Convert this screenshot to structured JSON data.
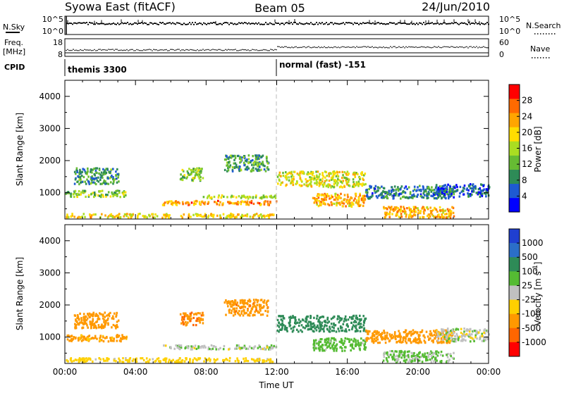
{
  "header": {
    "station": "Syowa East (fitACF)",
    "beam": "Beam 05",
    "date": "24/Jun/2010"
  },
  "strip_labels": {
    "noise_sky": "N.Sky",
    "noise_search": "N.Search",
    "freq_top": "Freq.",
    "freq_unit": "[MHz]",
    "nave": "Nave",
    "cpid": "CPID"
  },
  "noise_axis": {
    "left": [
      "10^5",
      "10^0"
    ],
    "right": [
      "10^5",
      "10^0"
    ]
  },
  "freq_axis": {
    "left": [
      "18",
      "8"
    ],
    "right": [
      "60",
      "0"
    ]
  },
  "cpid_segments": [
    {
      "start_hour": 0,
      "label": "themis 3300"
    },
    {
      "start_hour": 12,
      "label": "normal (fast) -151"
    }
  ],
  "colors": {
    "power": [
      "#0000ff",
      "#1e5ad2",
      "#2e8b57",
      "#66bb33",
      "#aadd22",
      "#ffdd00",
      "#ffa500",
      "#ff6a00",
      "#ff0000"
    ],
    "velocity": [
      "#1f3fd0",
      "#2b6ec8",
      "#2e8b57",
      "#55bb33",
      "#c0c0c0",
      "#ffd000",
      "#ff9900",
      "#ff6600",
      "#ff0000"
    ]
  },
  "chart_data": [
    {
      "type": "heatmap",
      "title": "",
      "xlabel": "Time UT",
      "ylabel": "Slant Range [km]",
      "xlim": [
        "00:00",
        "24:00"
      ],
      "ylim": [
        180,
        4500
      ],
      "x_ticks": [
        "00:00",
        "04:00",
        "08:00",
        "12:00",
        "16:00",
        "20:00",
        "00:00"
      ],
      "y_ticks": [
        1000,
        2000,
        3000,
        4000
      ],
      "colorbar": {
        "label": "Power [dB]",
        "min": 0,
        "max": 32,
        "ticks": [
          4,
          8,
          12,
          16,
          20,
          24,
          28
        ]
      },
      "echo_regions": [
        {
          "t": [
            0,
            11.8
          ],
          "range": [
            250,
            380
          ],
          "level": 20
        },
        {
          "t": [
            5.5,
            12
          ],
          "range": [
            650,
            780
          ],
          "level": 24
        },
        {
          "t": [
            7.8,
            12
          ],
          "range": [
            850,
            950
          ],
          "level": 16
        },
        {
          "t": [
            0,
            3.5
          ],
          "range": [
            900,
            1100
          ],
          "level": 14
        },
        {
          "t": [
            0.5,
            3
          ],
          "range": [
            1300,
            1800
          ],
          "level": 10
        },
        {
          "t": [
            6.5,
            7.8
          ],
          "range": [
            1400,
            1800
          ],
          "level": 14
        },
        {
          "t": [
            9,
            11.5
          ],
          "range": [
            1700,
            2200
          ],
          "level": 10
        },
        {
          "t": [
            12,
            17
          ],
          "range": [
            1200,
            1700
          ],
          "level": 18
        },
        {
          "t": [
            14,
            17
          ],
          "range": [
            600,
            1000
          ],
          "level": 22
        },
        {
          "t": [
            17,
            22
          ],
          "range": [
            850,
            1250
          ],
          "level": 8
        },
        {
          "t": [
            18,
            22
          ],
          "range": [
            250,
            600
          ],
          "level": 22
        },
        {
          "t": [
            21,
            24
          ],
          "range": [
            900,
            1300
          ],
          "level": 6
        }
      ]
    },
    {
      "type": "heatmap",
      "title": "",
      "xlabel": "Time UT",
      "ylabel": "Slant Range [km]",
      "xlim": [
        "00:00",
        "24:00"
      ],
      "ylim": [
        180,
        4500
      ],
      "x_ticks": [
        "00:00",
        "04:00",
        "08:00",
        "12:00",
        "16:00",
        "20:00",
        "00:00"
      ],
      "y_ticks": [
        1000,
        2000,
        3000,
        4000
      ],
      "colorbar": {
        "label": "Velocity [m s^-1]",
        "min": -1250,
        "max": 1250,
        "ticks": [
          1000,
          500,
          100,
          25,
          -25,
          -100,
          -500,
          -1000
        ]
      },
      "echo_regions": [
        {
          "t": [
            0,
            11.8
          ],
          "range": [
            250,
            380
          ],
          "velocity": -60
        },
        {
          "t": [
            5.5,
            12
          ],
          "range": [
            650,
            780
          ],
          "velocity": 10
        },
        {
          "t": [
            0,
            3.5
          ],
          "range": [
            900,
            1100
          ],
          "velocity": -150
        },
        {
          "t": [
            0.5,
            3
          ],
          "range": [
            1300,
            1800
          ],
          "velocity": -300
        },
        {
          "t": [
            6.5,
            7.8
          ],
          "range": [
            1400,
            1800
          ],
          "velocity": -400
        },
        {
          "t": [
            9,
            11.5
          ],
          "range": [
            1700,
            2200
          ],
          "velocity": -350
        },
        {
          "t": [
            12,
            17
          ],
          "range": [
            1200,
            1700
          ],
          "velocity": 200
        },
        {
          "t": [
            14,
            17
          ],
          "range": [
            600,
            1000
          ],
          "velocity": 60
        },
        {
          "t": [
            17,
            22
          ],
          "range": [
            850,
            1250
          ],
          "velocity": -200
        },
        {
          "t": [
            18,
            22
          ],
          "range": [
            250,
            600
          ],
          "velocity": 40
        },
        {
          "t": [
            21,
            24
          ],
          "range": [
            900,
            1300
          ],
          "velocity": 0
        }
      ]
    }
  ]
}
